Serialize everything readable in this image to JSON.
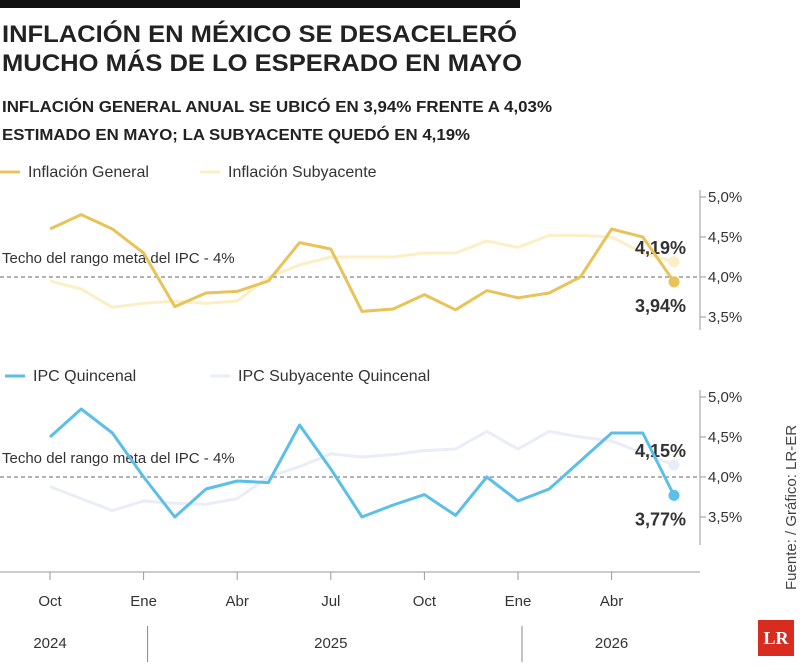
{
  "header": {
    "title_lines": [
      "INFLACIÓN EN MÉXICO SE DESACELERÓ",
      "MUCHO MÁS DE LO ESPERADO EN MAYO"
    ],
    "subtitle_lines": [
      "INFLACIÓN GENERAL ANUAL SE UBICÓ EN 3,94% FRENTE A 4,03%",
      "ESTIMADO EN MAYO; LA SUBYACENTE QUEDÓ EN 4,19%"
    ]
  },
  "source": "Fuente: / Gráfico: LR-ER",
  "logo": "LR",
  "chart_data": [
    {
      "type": "line",
      "series": [
        {
          "name": "Inflación General",
          "color": "#e8c35a",
          "values": [
            4.6,
            4.78,
            4.6,
            4.3,
            3.63,
            3.8,
            3.82,
            3.95,
            4.43,
            4.35,
            3.57,
            3.6,
            3.78,
            3.59,
            3.83,
            3.74,
            3.8,
            4.0,
            4.6,
            4.5,
            3.94
          ],
          "end_label": "3,94%"
        },
        {
          "name": "Inflación Subyacente",
          "color": "#fcefc6",
          "values": [
            3.95,
            3.85,
            3.62,
            3.67,
            3.7,
            3.67,
            3.7,
            4.0,
            4.15,
            4.25,
            4.25,
            4.25,
            4.3,
            4.3,
            4.45,
            4.37,
            4.52,
            4.52,
            4.5,
            4.3,
            4.19
          ],
          "end_label": "4,19%"
        }
      ],
      "ylim": [
        3.2,
        5.1
      ],
      "yticks": [
        {
          "value": 5,
          "label": "5,0%"
        },
        {
          "value": 4.5,
          "label": "4,5%"
        },
        {
          "value": 4,
          "label": "4,0%"
        },
        {
          "value": 3.5,
          "label": "3,5%"
        }
      ],
      "reference": {
        "value": 4,
        "label": "Techo del rango meta del IPC - 4%"
      }
    },
    {
      "type": "line",
      "series": [
        {
          "name": "IPC Quincenal",
          "color": "#5bbfe8",
          "values": [
            4.5,
            4.85,
            4.55,
            4.0,
            3.5,
            3.85,
            3.95,
            3.93,
            4.65,
            4.1,
            3.5,
            3.65,
            3.78,
            3.52,
            4.0,
            3.7,
            3.85,
            4.2,
            4.55,
            4.55,
            3.77
          ],
          "end_label": "3,77%"
        },
        {
          "name": "IPC Subyacente Quincenal",
          "color": "#e8edf8",
          "values": [
            3.88,
            3.73,
            3.58,
            3.7,
            3.67,
            3.66,
            3.73,
            4.0,
            4.13,
            4.29,
            4.25,
            4.28,
            4.33,
            4.35,
            4.57,
            4.35,
            4.57,
            4.5,
            4.45,
            4.3,
            4.15
          ],
          "end_label": "4,15%"
        }
      ],
      "ylim": [
        3.2,
        5.1
      ],
      "yticks": [
        {
          "value": 5,
          "label": "5,0%"
        },
        {
          "value": 4.5,
          "label": "4,5%"
        },
        {
          "value": 4,
          "label": "4,0%"
        },
        {
          "value": 3.5,
          "label": "3,5%"
        }
      ],
      "reference": {
        "value": 4,
        "label": "Techo del rango meta del IPC - 4%"
      },
      "categories": [
        "Oct",
        null,
        null,
        "Ene",
        null,
        null,
        "Abr",
        null,
        null,
        "Jul",
        null,
        null,
        "Oct",
        null,
        null,
        "Ene",
        null,
        null,
        "Abr",
        null,
        null
      ],
      "years": [
        "2024",
        "2025",
        "2026"
      ]
    }
  ]
}
